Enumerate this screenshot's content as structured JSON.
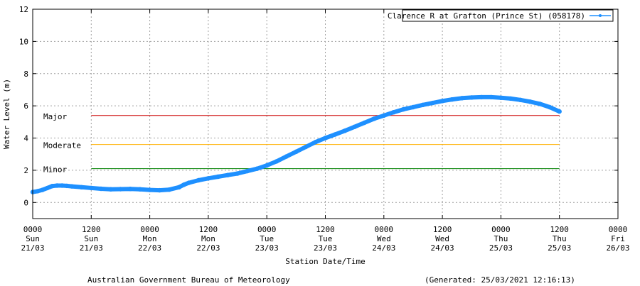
{
  "chart_data": {
    "type": "line",
    "title": "",
    "xlabel": "Station Date/Time",
    "ylabel": "Water Level (m)",
    "ylim": [
      -1,
      12
    ],
    "y_ticks": [
      0,
      2,
      4,
      6,
      8,
      10,
      12
    ],
    "xlim": [
      "2021-03-21T00:00",
      "2021-03-26T00:00"
    ],
    "x_ticks": [
      {
        "x": "2021-03-21T00:00",
        "time": "0000",
        "day": "Sun",
        "date": "21/03"
      },
      {
        "x": "2021-03-21T12:00",
        "time": "1200",
        "day": "Sun",
        "date": "21/03"
      },
      {
        "x": "2021-03-22T00:00",
        "time": "0000",
        "day": "Mon",
        "date": "22/03"
      },
      {
        "x": "2021-03-22T12:00",
        "time": "1200",
        "day": "Mon",
        "date": "22/03"
      },
      {
        "x": "2021-03-23T00:00",
        "time": "0000",
        "day": "Tue",
        "date": "23/03"
      },
      {
        "x": "2021-03-23T12:00",
        "time": "1200",
        "day": "Tue",
        "date": "23/03"
      },
      {
        "x": "2021-03-24T00:00",
        "time": "0000",
        "day": "Wed",
        "date": "24/03"
      },
      {
        "x": "2021-03-24T12:00",
        "time": "1200",
        "day": "Wed",
        "date": "24/03"
      },
      {
        "x": "2021-03-25T00:00",
        "time": "0000",
        "day": "Thu",
        "date": "25/03"
      },
      {
        "x": "2021-03-25T12:00",
        "time": "1200",
        "day": "Thu",
        "date": "25/03"
      },
      {
        "x": "2021-03-26T00:00",
        "time": "0000",
        "day": "Fri",
        "date": "26/03"
      }
    ],
    "grid": true,
    "legend_position": "top-right",
    "series": [
      {
        "name": "Clarence R at Grafton (Prince St) (058178)",
        "color": "#1e90ff",
        "points": [
          [
            "2021-03-21T00:00",
            0.65
          ],
          [
            "2021-03-21T01:00",
            0.7
          ],
          [
            "2021-03-21T02:00",
            0.78
          ],
          [
            "2021-03-21T03:00",
            0.9
          ],
          [
            "2021-03-21T04:00",
            1.02
          ],
          [
            "2021-03-21T05:00",
            1.05
          ],
          [
            "2021-03-21T06:00",
            1.05
          ],
          [
            "2021-03-21T07:00",
            1.03
          ],
          [
            "2021-03-21T08:00",
            1.0
          ],
          [
            "2021-03-21T10:00",
            0.95
          ],
          [
            "2021-03-21T12:00",
            0.9
          ],
          [
            "2021-03-21T14:00",
            0.85
          ],
          [
            "2021-03-21T16:00",
            0.82
          ],
          [
            "2021-03-21T18:00",
            0.83
          ],
          [
            "2021-03-21T20:00",
            0.84
          ],
          [
            "2021-03-21T22:00",
            0.82
          ],
          [
            "2021-03-22T00:00",
            0.78
          ],
          [
            "2021-03-22T02:00",
            0.76
          ],
          [
            "2021-03-22T04:00",
            0.8
          ],
          [
            "2021-03-22T06:00",
            0.95
          ],
          [
            "2021-03-22T07:00",
            1.1
          ],
          [
            "2021-03-22T08:00",
            1.22
          ],
          [
            "2021-03-22T10:00",
            1.38
          ],
          [
            "2021-03-22T12:00",
            1.5
          ],
          [
            "2021-03-22T14:00",
            1.6
          ],
          [
            "2021-03-22T16:00",
            1.7
          ],
          [
            "2021-03-22T18:00",
            1.8
          ],
          [
            "2021-03-22T20:00",
            1.95
          ],
          [
            "2021-03-22T22:00",
            2.1
          ],
          [
            "2021-03-23T00:00",
            2.3
          ],
          [
            "2021-03-23T02:00",
            2.55
          ],
          [
            "2021-03-23T04:00",
            2.85
          ],
          [
            "2021-03-23T06:00",
            3.15
          ],
          [
            "2021-03-23T08:00",
            3.45
          ],
          [
            "2021-03-23T10:00",
            3.75
          ],
          [
            "2021-03-23T12:00",
            4.0
          ],
          [
            "2021-03-23T14:00",
            4.22
          ],
          [
            "2021-03-23T16:00",
            4.45
          ],
          [
            "2021-03-23T18:00",
            4.7
          ],
          [
            "2021-03-23T20:00",
            4.95
          ],
          [
            "2021-03-23T22:00",
            5.2
          ],
          [
            "2021-03-24T00:00",
            5.4
          ],
          [
            "2021-03-24T02:00",
            5.6
          ],
          [
            "2021-03-24T04:00",
            5.78
          ],
          [
            "2021-03-24T06:00",
            5.92
          ],
          [
            "2021-03-24T08:00",
            6.06
          ],
          [
            "2021-03-24T10:00",
            6.18
          ],
          [
            "2021-03-24T12:00",
            6.3
          ],
          [
            "2021-03-24T14:00",
            6.4
          ],
          [
            "2021-03-24T16:00",
            6.48
          ],
          [
            "2021-03-24T18:00",
            6.52
          ],
          [
            "2021-03-24T20:00",
            6.54
          ],
          [
            "2021-03-24T22:00",
            6.54
          ],
          [
            "2021-03-25T00:00",
            6.5
          ],
          [
            "2021-03-25T02:00",
            6.45
          ],
          [
            "2021-03-25T04:00",
            6.37
          ],
          [
            "2021-03-25T06:00",
            6.26
          ],
          [
            "2021-03-25T08:00",
            6.12
          ],
          [
            "2021-03-25T10:00",
            5.92
          ],
          [
            "2021-03-25T12:00",
            5.65
          ]
        ]
      }
    ],
    "thresholds": [
      {
        "label": "Major",
        "value": 5.4,
        "color": "#cc0000",
        "from": "2021-03-21T12:00",
        "to": "2021-03-25T12:00"
      },
      {
        "label": "Moderate",
        "value": 3.6,
        "color": "#ffb000",
        "from": "2021-03-21T12:00",
        "to": "2021-03-25T12:00"
      },
      {
        "label": "Minor",
        "value": 2.1,
        "color": "#008000",
        "from": "2021-03-21T12:00",
        "to": "2021-03-25T12:00"
      }
    ]
  },
  "footer": {
    "credit": "Australian Government Bureau of Meteorology",
    "generated": "(Generated: 25/03/2021 12:16:13)"
  }
}
